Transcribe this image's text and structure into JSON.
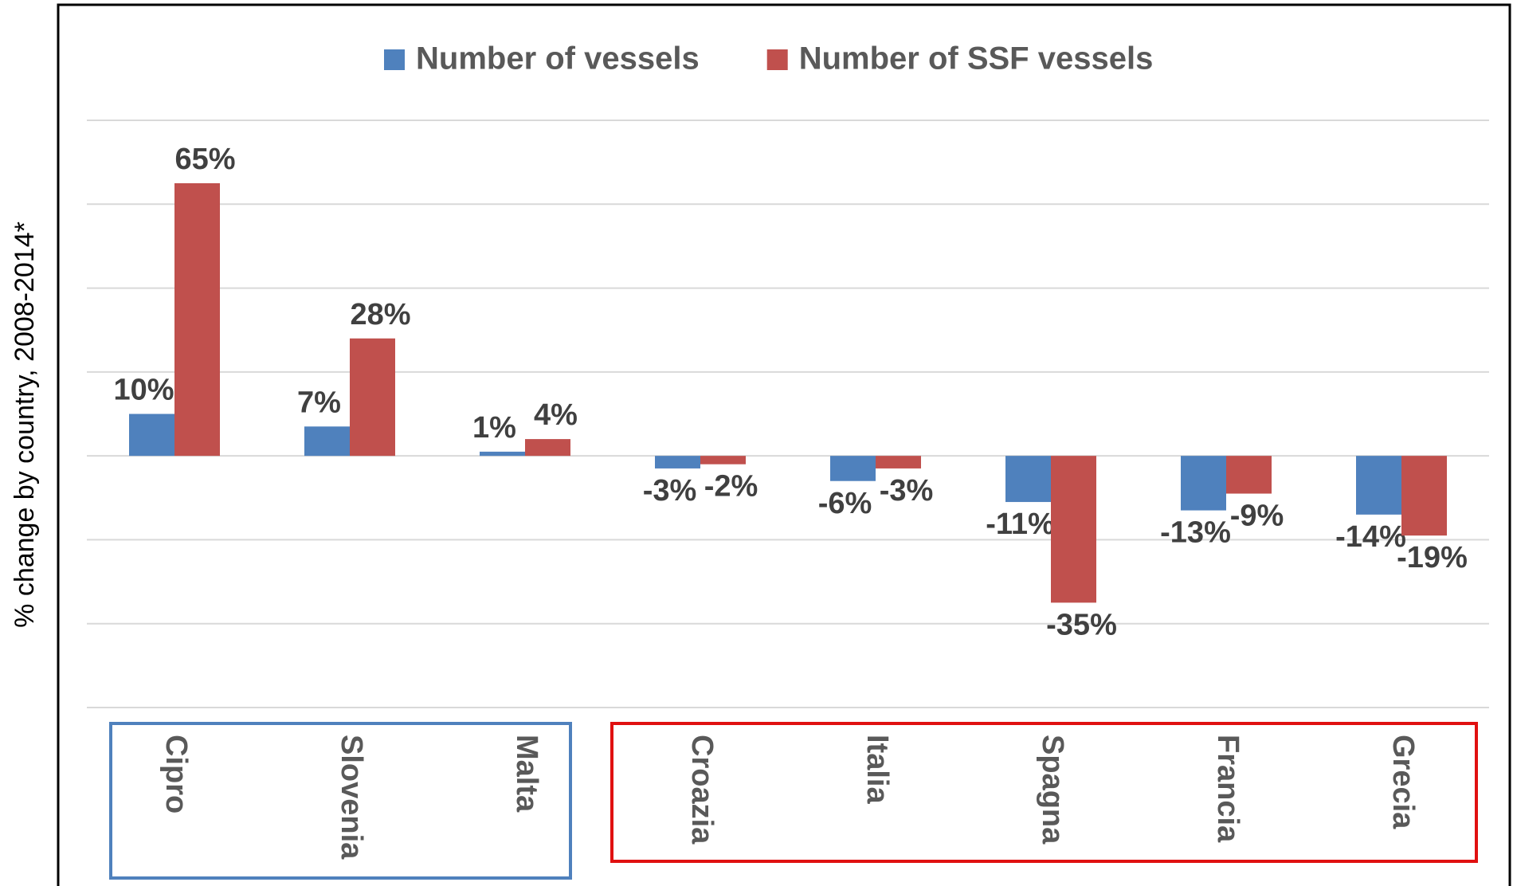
{
  "chart_data": {
    "type": "bar",
    "y_label": "% change by country, 2008-2014*",
    "categories": [
      "Cipro",
      "Slovenia",
      "Malta",
      "Croazia",
      "Italia",
      "Spagna",
      "Francia",
      "Grecia"
    ],
    "series": [
      {
        "name": "Number of vessels",
        "color": "#4f81bd",
        "values": [
          10,
          7,
          1,
          -3,
          -6,
          -11,
          -13,
          -14
        ],
        "value_labels": [
          "10%",
          "7%",
          "1%",
          "-3%",
          "-6%",
          "-11%",
          "-13%",
          "-14%"
        ]
      },
      {
        "name": "Number of SSF vessels",
        "color": "#c0504d",
        "values": [
          65,
          28,
          4,
          -2,
          -3,
          -35,
          -9,
          -19
        ],
        "value_labels": [
          "65%",
          "28%",
          "4%",
          "-2%",
          "-3%",
          "-35%",
          "-9%",
          "-19%"
        ]
      }
    ],
    "ylim": [
      -60,
      80
    ],
    "yticks": [
      -60,
      -40,
      -20,
      0,
      20,
      40,
      60,
      80
    ],
    "grid": true
  }
}
